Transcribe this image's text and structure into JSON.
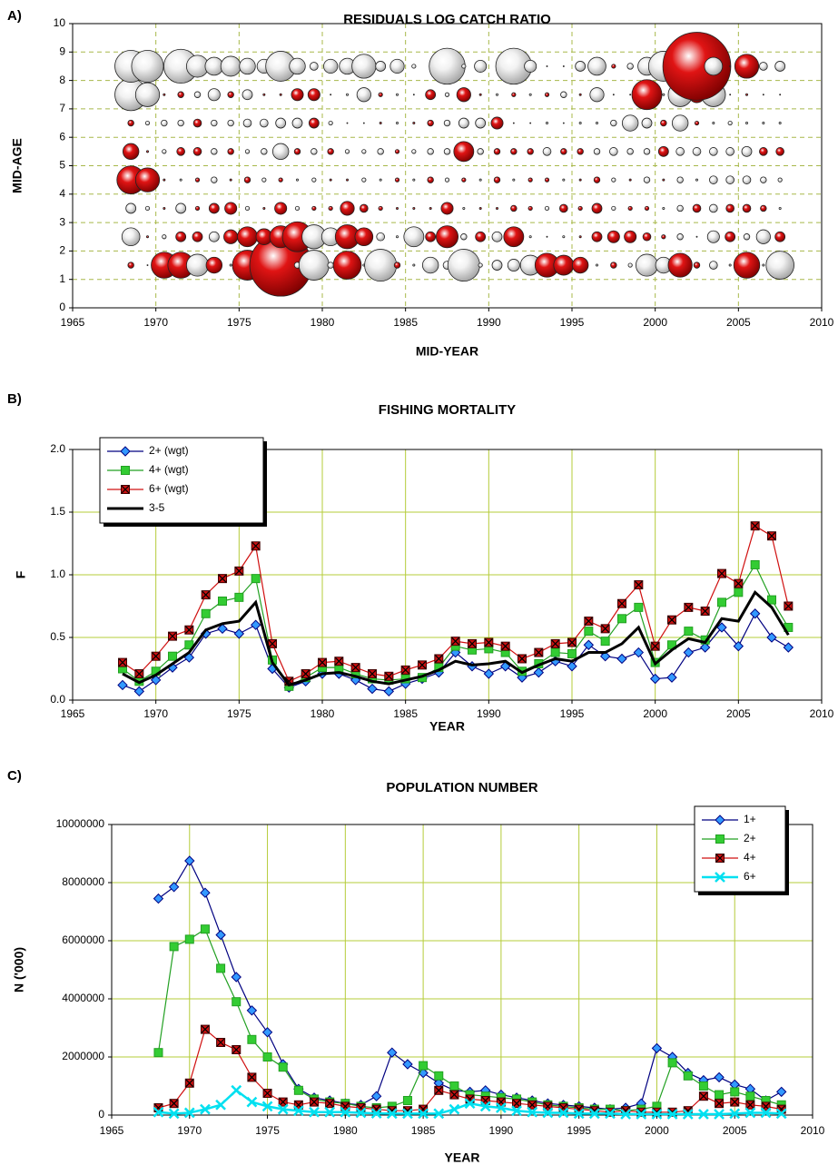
{
  "chart_data": [
    {
      "label": "A)",
      "type": "bubble",
      "title": "RESIDUALS LOG CATCH RATIO",
      "xlabel": "MID-YEAR",
      "ylabel": "MID-AGE",
      "x": [
        1968.5,
        1969.5,
        1970.5,
        1971.5,
        1972.5,
        1973.5,
        1974.5,
        1975.5,
        1976.5,
        1977.5,
        1978.5,
        1979.5,
        1980.5,
        1981.5,
        1982.5,
        1983.5,
        1984.5,
        1985.5,
        1986.5,
        1987.5,
        1988.5,
        1989.5,
        1990.5,
        1991.5,
        1992.5,
        1993.5,
        1994.5,
        1995.5,
        1996.5,
        1997.5,
        1998.5,
        1999.5,
        2000.5,
        2001.5,
        2002.5,
        2003.5,
        2004.5,
        2005.5,
        2006.5,
        2007.5
      ],
      "y": [
        1.5,
        2.5,
        3.5,
        4.5,
        5.5,
        6.5,
        7.5,
        8.5
      ],
      "values": [
        [
          0.3,
          0.05,
          1.3,
          1.3,
          -1.1,
          0.8,
          -0.1,
          1.5,
          0.1,
          3.1,
          -0.3,
          -1.5,
          -0.3,
          1.4,
          -0.1,
          -1.6,
          0.3,
          -0.1,
          -0.8,
          -0.4,
          -1.6,
          -0.2,
          -0.5,
          -0.6,
          -1.0,
          1.2,
          1.0,
          0.8,
          -0.1,
          0.3,
          -0.2,
          -1.1,
          -0.8,
          1.2,
          0.3,
          -0.4,
          -0.1,
          1.3,
          -0.1,
          -1.4
        ],
        [
          -0.9,
          0.1,
          -0.2,
          0.5,
          0.5,
          -0.5,
          0.7,
          1.0,
          0.8,
          1.1,
          1.5,
          -1.2,
          -0.9,
          1.2,
          0.9,
          -0.4,
          -0.1,
          -1.0,
          0.5,
          1.1,
          -0.3,
          0.5,
          -0.5,
          1.0,
          -0.1,
          0.05,
          -0.1,
          0.1,
          0.5,
          0.6,
          0.6,
          0.4,
          0.2,
          -0.3,
          -0.05,
          -0.6,
          0.5,
          -0.3,
          -0.7,
          0.5
        ],
        [
          -0.5,
          -0.2,
          0.1,
          -0.5,
          0.2,
          0.5,
          0.6,
          -0.2,
          0.1,
          0.6,
          -0.2,
          0.2,
          0.2,
          0.7,
          0.4,
          0.2,
          0.1,
          0.1,
          0.1,
          0.6,
          -0.1,
          0.1,
          0.1,
          0.3,
          0.2,
          -0.2,
          0.4,
          0.2,
          0.5,
          -0.2,
          0.2,
          0.2,
          -0.1,
          -0.3,
          0.4,
          -0.4,
          0.4,
          0.4,
          0.3,
          -0.1
        ],
        [
          1.4,
          1.2,
          0.1,
          -0.1,
          0.2,
          -0.3,
          0.1,
          0.3,
          -0.2,
          0.2,
          -0.1,
          -0.2,
          0.1,
          0.1,
          -0.2,
          -0.1,
          0.2,
          -0.1,
          0.3,
          -0.2,
          0.2,
          -0.1,
          0.3,
          -0.1,
          0.2,
          0.2,
          -0.1,
          0.1,
          0.3,
          -0.2,
          0.1,
          -0.3,
          0.1,
          -0.3,
          -0.1,
          -0.4,
          -0.4,
          -0.4,
          -0.3,
          -0.2
        ],
        [
          0.8,
          0.1,
          -0.2,
          0.4,
          0.4,
          -0.3,
          0.3,
          -0.2,
          -0.3,
          -0.8,
          0.3,
          -0.3,
          0.3,
          -0.2,
          -0.2,
          -0.3,
          0.2,
          -0.2,
          -0.3,
          -0.3,
          1.0,
          -0.3,
          0.3,
          0.3,
          0.3,
          -0.4,
          0.3,
          0.3,
          -0.3,
          -0.4,
          -0.3,
          -0.3,
          0.5,
          -0.4,
          -0.4,
          -0.4,
          -0.4,
          -0.5,
          0.4,
          0.4
        ],
        [
          0.3,
          -0.2,
          -0.3,
          -0.3,
          0.4,
          -0.3,
          -0.3,
          -0.4,
          -0.4,
          -0.5,
          -0.5,
          0.5,
          -0.2,
          0.05,
          -0.05,
          0.1,
          -0.1,
          0.1,
          0.3,
          -0.3,
          -0.5,
          -0.5,
          0.6,
          0.05,
          0.05,
          -0.1,
          -0.05,
          -0.1,
          -0.1,
          -0.3,
          -0.8,
          -0.5,
          0.3,
          -0.8,
          0.2,
          -0.1,
          -0.2,
          -0.1,
          -0.1,
          -0.1
        ],
        [
          -1.6,
          -1.2,
          0.1,
          0.3,
          -0.3,
          -0.6,
          0.3,
          -0.5,
          0.1,
          0.1,
          0.6,
          0.6,
          0.05,
          -0.1,
          -0.7,
          0.2,
          -0.1,
          -0.05,
          0.5,
          -0.2,
          0.7,
          0.1,
          -0.1,
          0.2,
          -0.1,
          0.2,
          -0.3,
          0.1,
          -0.7,
          0.05,
          0.05,
          1.5,
          -0.1,
          -1.2,
          0.8,
          -1.2,
          0.05,
          0.1,
          0.05,
          0.05
        ],
        [
          -1.6,
          -1.6,
          -0.05,
          -1.7,
          -1.1,
          -0.9,
          -1.0,
          -0.8,
          -0.7,
          -1.5,
          -0.8,
          -0.4,
          -0.7,
          -0.8,
          -1.2,
          -0.5,
          -0.7,
          -0.2,
          0.05,
          -1.8,
          -0.2,
          -0.6,
          0.05,
          -1.8,
          -0.6,
          0.05,
          0.05,
          -0.5,
          -0.9,
          0.2,
          -0.3,
          -0.9,
          -1.5,
          -1.2,
          3.4,
          -0.9,
          0.05,
          1.2,
          -0.4,
          -0.5
        ]
      ],
      "colors": {
        "positive": "#e01414",
        "negative": "#f2f2f2"
      },
      "xlim": [
        1965,
        2010
      ],
      "xticks": [
        1965,
        1970,
        1975,
        1980,
        1985,
        1990,
        1995,
        2000,
        2005,
        2010
      ],
      "ylim": [
        0,
        10
      ],
      "yticks": [
        0,
        1,
        2,
        3,
        4,
        5,
        6,
        7,
        8,
        9,
        10
      ],
      "grid": true,
      "grid_style": "dashed",
      "grid_color": "#a8b84a"
    },
    {
      "label": "B)",
      "type": "line",
      "title": "FISHING MORTALITY",
      "xlabel": "YEAR",
      "ylabel": "F",
      "x": [
        1968,
        1969,
        1970,
        1971,
        1972,
        1973,
        1974,
        1975,
        1976,
        1977,
        1978,
        1979,
        1980,
        1981,
        1982,
        1983,
        1984,
        1985,
        1986,
        1987,
        1988,
        1989,
        1990,
        1991,
        1992,
        1993,
        1994,
        1995,
        1996,
        1997,
        1998,
        1999,
        2000,
        2001,
        2002,
        2003,
        2004,
        2005,
        2006,
        2007,
        2008
      ],
      "series": [
        {
          "name": "2+ (wgt)",
          "color": "#000080",
          "marker": "diamond",
          "marker_color": "#3399ff",
          "values": [
            0.12,
            0.07,
            0.16,
            0.26,
            0.34,
            0.53,
            0.57,
            0.53,
            0.6,
            0.25,
            0.1,
            0.15,
            0.21,
            0.21,
            0.16,
            0.09,
            0.07,
            0.13,
            0.17,
            0.22,
            0.38,
            0.27,
            0.21,
            0.27,
            0.18,
            0.22,
            0.31,
            0.27,
            0.44,
            0.35,
            0.33,
            0.38,
            0.17,
            0.18,
            0.38,
            0.42,
            0.58,
            0.43,
            0.69,
            0.5,
            0.42
          ]
        },
        {
          "name": "4+ (wgt)",
          "color": "#22a022",
          "marker": "square",
          "marker_color": "#33cc33",
          "values": [
            0.25,
            0.15,
            0.23,
            0.35,
            0.44,
            0.69,
            0.79,
            0.82,
            0.97,
            0.32,
            0.11,
            0.18,
            0.26,
            0.26,
            0.21,
            0.17,
            0.16,
            0.17,
            0.18,
            0.26,
            0.43,
            0.4,
            0.41,
            0.38,
            0.23,
            0.29,
            0.38,
            0.37,
            0.55,
            0.47,
            0.65,
            0.74,
            0.3,
            0.44,
            0.55,
            0.48,
            0.78,
            0.86,
            1.08,
            0.8,
            0.58
          ]
        },
        {
          "name": "6+ (wgt)",
          "color": "#d01010",
          "marker": "xbox",
          "marker_color": "#cc1111",
          "values": [
            0.3,
            0.21,
            0.35,
            0.51,
            0.56,
            0.84,
            0.97,
            1.03,
            1.23,
            0.45,
            0.15,
            0.21,
            0.3,
            0.31,
            0.26,
            0.21,
            0.19,
            0.24,
            0.28,
            0.33,
            0.47,
            0.45,
            0.46,
            0.43,
            0.33,
            0.38,
            0.45,
            0.46,
            0.63,
            0.57,
            0.77,
            0.92,
            0.43,
            0.64,
            0.74,
            0.71,
            1.01,
            0.93,
            1.39,
            1.31,
            0.75
          ]
        },
        {
          "name": "3-5",
          "color": "#000000",
          "line_width": 3,
          "values": [
            0.21,
            0.14,
            0.2,
            0.29,
            0.38,
            0.56,
            0.61,
            0.63,
            0.78,
            0.3,
            0.12,
            0.16,
            0.21,
            0.22,
            0.19,
            0.15,
            0.13,
            0.16,
            0.19,
            0.24,
            0.31,
            0.28,
            0.29,
            0.31,
            0.22,
            0.28,
            0.33,
            0.31,
            0.38,
            0.38,
            0.45,
            0.58,
            0.29,
            0.4,
            0.49,
            0.46,
            0.65,
            0.63,
            0.86,
            0.74,
            0.52
          ]
        }
      ],
      "xlim": [
        1965,
        2010
      ],
      "xticks": [
        1965,
        1970,
        1975,
        1980,
        1985,
        1990,
        1995,
        2000,
        2005,
        2010
      ],
      "ylim": [
        0,
        2
      ],
      "yticks": [
        {
          "value": 0,
          "label": "0.0"
        },
        0.5,
        {
          "value": 1,
          "label": "1.0"
        },
        1.5,
        {
          "value": 2,
          "label": "2.0"
        }
      ],
      "grid": true,
      "grid_style": "solid",
      "grid_color": "#b5cc3a",
      "legend": "upper left"
    },
    {
      "label": "C)",
      "type": "line",
      "title": "POPULATION NUMBER",
      "xlabel": "YEAR",
      "ylabel": "N ('000)",
      "x": [
        1968,
        1969,
        1970,
        1971,
        1972,
        1973,
        1974,
        1975,
        1976,
        1977,
        1978,
        1979,
        1980,
        1981,
        1982,
        1983,
        1984,
        1985,
        1986,
        1987,
        1988,
        1989,
        1990,
        1991,
        1992,
        1993,
        1994,
        1995,
        1996,
        1997,
        1998,
        1999,
        2000,
        2001,
        2002,
        2003,
        2004,
        2005,
        2006,
        2007,
        2008
      ],
      "series": [
        {
          "name": "1+",
          "color": "#000080",
          "marker": "diamond",
          "marker_color": "#3399ff",
          "values": [
            7450000,
            7850000,
            8750000,
            7650000,
            6200000,
            4750000,
            3600000,
            2850000,
            1750000,
            900000,
            600000,
            500000,
            400000,
            350000,
            650000,
            2150000,
            1750000,
            1450000,
            1100000,
            850000,
            800000,
            850000,
            700000,
            600000,
            500000,
            400000,
            350000,
            300000,
            250000,
            200000,
            250000,
            400000,
            2300000,
            2000000,
            1450000,
            1200000,
            1300000,
            1050000,
            900000,
            500000,
            800000
          ]
        },
        {
          "name": "2+",
          "color": "#22a022",
          "marker": "square",
          "marker_color": "#33cc33",
          "values": [
            2150000,
            5800000,
            6050000,
            6400000,
            5050000,
            3900000,
            2600000,
            2000000,
            1650000,
            850000,
            550000,
            450000,
            400000,
            300000,
            250000,
            300000,
            500000,
            1700000,
            1350000,
            1000000,
            700000,
            650000,
            600000,
            550000,
            450000,
            350000,
            300000,
            250000,
            200000,
            200000,
            150000,
            200000,
            300000,
            1800000,
            1350000,
            1000000,
            700000,
            800000,
            650000,
            500000,
            350000
          ]
        },
        {
          "name": "4+",
          "color": "#d01010",
          "marker": "xbox",
          "marker_color": "#cc1111",
          "values": [
            250000,
            400000,
            1100000,
            2950000,
            2500000,
            2250000,
            1300000,
            750000,
            450000,
            350000,
            450000,
            400000,
            300000,
            250000,
            200000,
            150000,
            150000,
            200000,
            850000,
            700000,
            550000,
            500000,
            450000,
            400000,
            350000,
            300000,
            250000,
            200000,
            150000,
            100000,
            150000,
            100000,
            100000,
            100000,
            150000,
            650000,
            400000,
            450000,
            350000,
            300000,
            200000
          ]
        },
        {
          "name": "6+",
          "color": "#00e0f0",
          "marker": "x",
          "marker_color": "#00e0f0",
          "line_width": 2.5,
          "values": [
            100000,
            50000,
            80000,
            200000,
            350000,
            850000,
            450000,
            300000,
            200000,
            150000,
            100000,
            100000,
            100000,
            80000,
            60000,
            50000,
            50000,
            50000,
            50000,
            200000,
            400000,
            300000,
            250000,
            150000,
            100000,
            80000,
            80000,
            50000,
            50000,
            50000,
            30000,
            30000,
            30000,
            30000,
            30000,
            30000,
            30000,
            50000,
            80000,
            80000,
            50000
          ]
        }
      ],
      "xlim": [
        1965,
        2010
      ],
      "xticks": [
        1965,
        1970,
        1975,
        1980,
        1985,
        1990,
        1995,
        2000,
        2005,
        2010
      ],
      "ylim": [
        0,
        10000000
      ],
      "yticks": [
        0,
        2000000,
        4000000,
        6000000,
        8000000,
        10000000
      ],
      "grid": true,
      "grid_style": "solid",
      "grid_color": "#b5cc3a",
      "legend": "upper right"
    }
  ]
}
